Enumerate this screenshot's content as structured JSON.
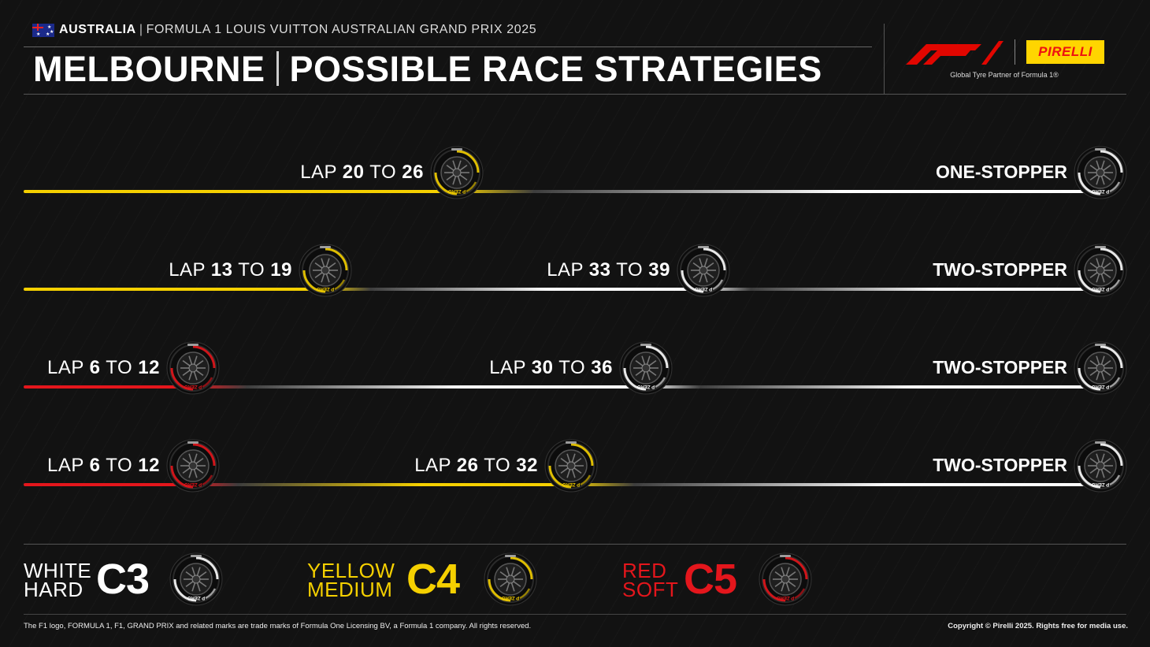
{
  "colors": {
    "hard": "#ffffff",
    "medium": "#f5d000",
    "soft": "#e4161c",
    "f1_red": "#e10600",
    "pirelli_yellow": "#ffd500"
  },
  "header": {
    "flag_icon": "australia-flag-icon",
    "country": "AUSTRALIA",
    "separator": "|",
    "event": "FORMULA 1 LOUIS VUITTON AUSTRALIAN GRAND PRIX 2025",
    "title_left": "MELBOURNE",
    "title_right": "POSSIBLE RACE STRATEGIES"
  },
  "logos": {
    "f1_icon": "f1-logo-icon",
    "pirelli": "PIRELLI",
    "partner": "Global Tyre Partner of Formula 1®"
  },
  "lap_word": "LAP",
  "to_word": "TO",
  "strategies": [
    {
      "type": "ONE-STOPPER",
      "stints": [
        "medium",
        "hard"
      ],
      "stops": [
        {
          "from": "20",
          "to": "26",
          "tyre": "medium"
        }
      ]
    },
    {
      "type": "TWO-STOPPER",
      "stints": [
        "medium",
        "hard",
        "hard"
      ],
      "stops": [
        {
          "from": "13",
          "to": "19",
          "tyre": "medium"
        },
        {
          "from": "33",
          "to": "39",
          "tyre": "hard"
        }
      ]
    },
    {
      "type": "TWO-STOPPER",
      "stints": [
        "soft",
        "hard",
        "hard"
      ],
      "stops": [
        {
          "from": "6",
          "to": "12",
          "tyre": "soft"
        },
        {
          "from": "30",
          "to": "36",
          "tyre": "hard"
        }
      ]
    },
    {
      "type": "TWO-STOPPER",
      "stints": [
        "soft",
        "medium",
        "hard"
      ],
      "stops": [
        {
          "from": "6",
          "to": "12",
          "tyre": "soft"
        },
        {
          "from": "26",
          "to": "32",
          "tyre": "medium"
        }
      ]
    }
  ],
  "legend": [
    {
      "colour": "WHITE",
      "name": "HARD",
      "code": "C3",
      "tyre": "hard"
    },
    {
      "colour": "YELLOW",
      "name": "MEDIUM",
      "code": "C4",
      "tyre": "medium"
    },
    {
      "colour": "RED",
      "name": "SOFT",
      "code": "C5",
      "tyre": "soft"
    }
  ],
  "tyre_icon": "pirelli-tyre-icon",
  "footer": {
    "left": "The F1 logo, FORMULA 1, F1, GRAND PRIX and related marks are trade marks of Formula One Licensing BV, a Formula 1 company. All rights reserved.",
    "right": "Copyright © Pirelli 2025. Rights free for media use."
  }
}
